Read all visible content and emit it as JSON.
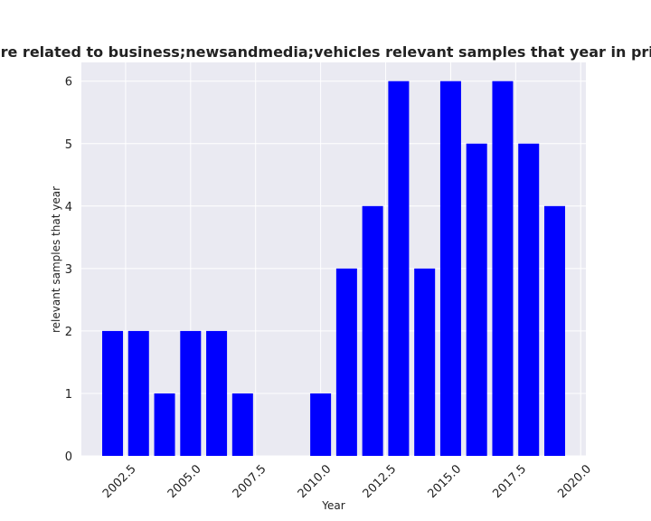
{
  "chart_data": {
    "type": "bar",
    "title": "gories are related to business;newsandmedia;vehicles relevant samples that year in privacy po",
    "xlabel": "Year",
    "ylabel": "relevant samples that year",
    "x": [
      2002,
      2003,
      2004,
      2005,
      2006,
      2007,
      2010,
      2011,
      2012,
      2013,
      2014,
      2015,
      2016,
      2017,
      2018,
      2019
    ],
    "values": [
      2,
      2,
      1,
      2,
      2,
      1,
      1,
      3,
      4,
      6,
      3,
      6,
      5,
      6,
      5,
      4
    ],
    "xticks": [
      2002.5,
      2005.0,
      2007.5,
      2010.0,
      2012.5,
      2015.0,
      2017.5,
      2020.0
    ],
    "xtick_labels": [
      "2002.5",
      "2005.0",
      "2007.5",
      "2010.0",
      "2012.5",
      "2015.0",
      "2017.5",
      "2020.0"
    ],
    "yticks": [
      0,
      1,
      2,
      3,
      4,
      5,
      6
    ],
    "ytick_labels": [
      "0",
      "1",
      "2",
      "3",
      "4",
      "5",
      "6"
    ],
    "xlim": [
      2000.8,
      2020.2
    ],
    "ylim": [
      0,
      6.3
    ],
    "bar_color": "#0000ff",
    "background_color": "#eaeaf2",
    "grid": true,
    "legend": null
  }
}
